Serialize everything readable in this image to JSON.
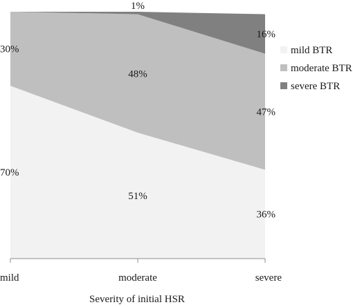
{
  "chart_data": {
    "type": "area",
    "stacked": true,
    "percent": true,
    "categories": [
      "mild",
      "moderate",
      "severe"
    ],
    "series": [
      {
        "name": "mild BTR",
        "values": [
          70,
          51,
          36
        ],
        "labels": [
          "70%",
          "51%",
          "36%"
        ],
        "color": "#f2f2f2"
      },
      {
        "name": "moderate BTR",
        "values": [
          30,
          48,
          47
        ],
        "labels": [
          "30%",
          "48%",
          "47%"
        ],
        "color": "#bfbfbf"
      },
      {
        "name": "severe BTR",
        "values": [
          0,
          1,
          16
        ],
        "labels": [
          "",
          "1%",
          "16%"
        ],
        "color": "#808080"
      }
    ],
    "xlabel": "Severity of initial HSR",
    "ylabel": "",
    "ylim": [
      0,
      100
    ],
    "grid": false,
    "legend": "right"
  }
}
